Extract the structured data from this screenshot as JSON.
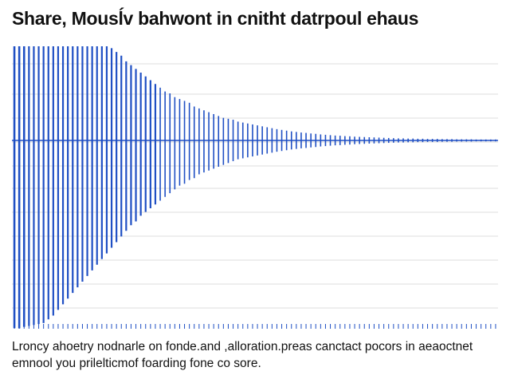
{
  "title": "Share, Mousĺv bahwont in cnitht datrpoul ehaus",
  "caption": "Lroncy ahoetry nodnarle on fonde.and ,alloration.preas canctact pocors in aeaoctnet emnool you prilelticmof foarding fone co sore.",
  "colors": {
    "series": "#1f4fc4",
    "grid": "#dcdcdc",
    "text": "#111111"
  },
  "chart_data": {
    "type": "bar",
    "title": "Share, Mousĺv bahwont in cnitht datrpoul ehaus",
    "xlabel": "",
    "ylabel": "",
    "grid": true,
    "ylim": [
      -1,
      1
    ],
    "x": [
      1,
      2,
      3,
      4,
      5,
      6,
      7,
      8,
      9,
      10,
      11,
      12,
      13,
      14,
      15,
      16,
      17,
      18,
      19,
      20,
      21,
      22,
      23,
      24,
      25,
      26,
      27,
      28,
      29,
      30,
      31,
      32,
      33,
      34,
      35,
      36,
      37,
      38,
      39,
      40,
      41,
      42,
      43,
      44,
      45,
      46,
      47,
      48,
      49,
      50,
      51,
      52,
      53,
      54,
      55,
      56,
      57,
      58,
      59,
      60,
      61,
      62,
      63,
      64,
      65,
      66,
      67,
      68,
      69,
      70,
      71,
      72,
      73,
      74,
      75,
      76,
      77,
      78,
      79,
      80,
      81,
      82,
      83,
      84,
      85,
      86,
      87,
      88,
      89,
      90,
      91,
      92,
      93,
      94,
      95,
      96,
      97,
      98,
      99,
      100
    ],
    "series": [
      {
        "values_up": [
          0.998,
          1.0,
          0.99,
          0.975,
          0.96,
          0.94,
          0.9,
          0.86,
          0.84,
          0.81,
          0.78,
          0.76,
          0.73,
          0.7,
          0.67,
          0.64,
          0.61,
          0.57,
          0.54,
          0.52,
          0.49,
          0.47,
          0.45,
          0.42,
          0.4,
          0.38,
          0.36,
          0.34,
          0.32,
          0.3,
          0.28,
          0.26,
          0.25,
          0.23,
          0.22,
          0.21,
          0.2,
          0.18,
          0.17,
          0.16,
          0.15,
          0.14,
          0.13,
          0.12,
          0.115,
          0.11,
          0.1,
          0.095,
          0.09,
          0.085,
          0.08,
          0.075,
          0.07,
          0.065,
          0.06,
          0.056,
          0.052,
          0.048,
          0.045,
          0.042,
          0.04,
          0.037,
          0.035,
          0.032,
          0.03,
          0.028,
          0.026,
          0.025,
          0.023,
          0.022,
          0.02,
          0.019,
          0.018,
          0.017,
          0.016,
          0.015,
          0.014,
          0.013,
          0.012,
          0.011,
          0.011,
          0.01,
          0.01,
          0.009,
          0.009,
          0.008,
          0.008,
          0.008,
          0.007,
          0.007,
          0.007,
          0.006,
          0.006,
          0.006,
          0.006,
          0.005,
          0.005,
          0.005,
          0.005,
          0.005
        ],
        "values_down": [
          -0.997,
          -0.998,
          -0.99,
          -0.985,
          -0.98,
          -0.975,
          -0.97,
          -0.95,
          -0.93,
          -0.9,
          -0.87,
          -0.84,
          -0.81,
          -0.78,
          -0.75,
          -0.72,
          -0.69,
          -0.66,
          -0.63,
          -0.6,
          -0.57,
          -0.54,
          -0.51,
          -0.48,
          -0.45,
          -0.43,
          -0.4,
          -0.38,
          -0.36,
          -0.34,
          -0.32,
          -0.3,
          -0.28,
          -0.26,
          -0.24,
          -0.23,
          -0.21,
          -0.2,
          -0.18,
          -0.17,
          -0.16,
          -0.15,
          -0.14,
          -0.13,
          -0.12,
          -0.11,
          -0.1,
          -0.095,
          -0.09,
          -0.085,
          -0.08,
          -0.075,
          -0.07,
          -0.065,
          -0.06,
          -0.056,
          -0.052,
          -0.048,
          -0.045,
          -0.042,
          -0.04,
          -0.037,
          -0.035,
          -0.032,
          -0.03,
          -0.028,
          -0.026,
          -0.025,
          -0.023,
          -0.022,
          -0.02,
          -0.019,
          -0.018,
          -0.017,
          -0.016,
          -0.015,
          -0.014,
          -0.013,
          -0.012,
          -0.011,
          -0.011,
          -0.01,
          -0.01,
          -0.009,
          -0.009,
          -0.008,
          -0.008,
          -0.008,
          -0.007,
          -0.007,
          -0.007,
          -0.006,
          -0.006,
          -0.006,
          -0.006,
          -0.005,
          -0.005,
          -0.005,
          -0.005,
          -0.005
        ]
      }
    ]
  }
}
